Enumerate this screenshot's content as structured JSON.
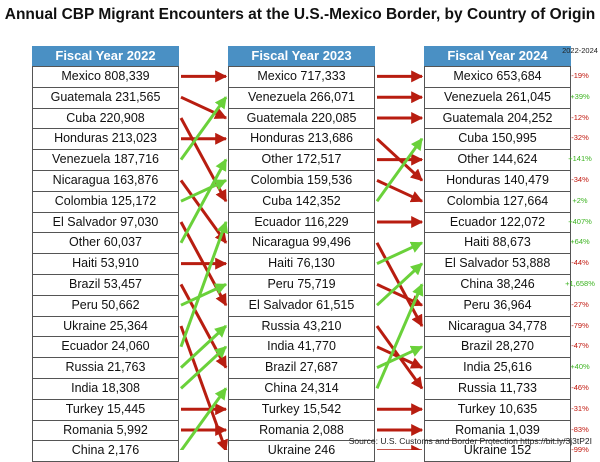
{
  "chart_data": {
    "type": "table",
    "title": "Annual CBP Migrant Encounters at the U.S.-Mexico Border, by Country of Origin",
    "change_header": "2022-2024",
    "source": "Source: U.S. Customs and Border Protection https://bit.ly/3j3tP2I",
    "columns": [
      {
        "header": "Fiscal Year 2022",
        "rows": [
          {
            "country": "Mexico",
            "value": 808339,
            "label": "Mexico 808,339"
          },
          {
            "country": "Guatemala",
            "value": 231565,
            "label": "Guatemala 231,565"
          },
          {
            "country": "Cuba",
            "value": 220908,
            "label": "Cuba 220,908"
          },
          {
            "country": "Honduras",
            "value": 213023,
            "label": "Honduras 213,023"
          },
          {
            "country": "Venezuela",
            "value": 187716,
            "label": "Venezuela 187,716"
          },
          {
            "country": "Nicaragua",
            "value": 163876,
            "label": "Nicaragua 163,876"
          },
          {
            "country": "Colombia",
            "value": 125172,
            "label": "Colombia 125,172"
          },
          {
            "country": "El Salvador",
            "value": 97030,
            "label": "El Salvador 97,030"
          },
          {
            "country": "Other",
            "value": 60037,
            "label": "Other 60,037"
          },
          {
            "country": "Haiti",
            "value": 53910,
            "label": "Haiti 53,910"
          },
          {
            "country": "Brazil",
            "value": 53457,
            "label": "Brazil 53,457"
          },
          {
            "country": "Peru",
            "value": 50662,
            "label": "Peru 50,662"
          },
          {
            "country": "Ukraine",
            "value": 25364,
            "label": "Ukraine 25,364"
          },
          {
            "country": "Ecuador",
            "value": 24060,
            "label": "Ecuador 24,060"
          },
          {
            "country": "Russia",
            "value": 21763,
            "label": "Russia 21,763"
          },
          {
            "country": "India",
            "value": 18308,
            "label": "India 18,308"
          },
          {
            "country": "Turkey",
            "value": 15445,
            "label": "Turkey 15,445"
          },
          {
            "country": "Romania",
            "value": 5992,
            "label": "Romania 5,992"
          },
          {
            "country": "China",
            "value": 2176,
            "label": "China 2,176"
          }
        ]
      },
      {
        "header": "Fiscal Year 2023",
        "rows": [
          {
            "country": "Mexico",
            "value": 717333,
            "label": "Mexico 717,333"
          },
          {
            "country": "Venezuela",
            "value": 266071,
            "label": "Venezuela 266,071"
          },
          {
            "country": "Guatemala",
            "value": 220085,
            "label": "Guatemala 220,085"
          },
          {
            "country": "Honduras",
            "value": 213686,
            "label": "Honduras 213,686"
          },
          {
            "country": "Other",
            "value": 172517,
            "label": "Other 172,517"
          },
          {
            "country": "Colombia",
            "value": 159536,
            "label": "Colombia 159,536"
          },
          {
            "country": "Cuba",
            "value": 142352,
            "label": "Cuba 142,352"
          },
          {
            "country": "Ecuador",
            "value": 116229,
            "label": "Ecuador 116,229"
          },
          {
            "country": "Nicaragua",
            "value": 99496,
            "label": "Nicaragua 99,496"
          },
          {
            "country": "Haiti",
            "value": 76130,
            "label": "Haiti 76,130"
          },
          {
            "country": "Peru",
            "value": 75719,
            "label": "Peru 75,719"
          },
          {
            "country": "El Salvador",
            "value": 61515,
            "label": "El Salvador 61,515"
          },
          {
            "country": "Russia",
            "value": 43210,
            "label": "Russia 43,210"
          },
          {
            "country": "India",
            "value": 41770,
            "label": "India 41,770"
          },
          {
            "country": "Brazil",
            "value": 27687,
            "label": "Brazil 27,687"
          },
          {
            "country": "China",
            "value": 24314,
            "label": "China 24,314"
          },
          {
            "country": "Turkey",
            "value": 15542,
            "label": "Turkey 15,542"
          },
          {
            "country": "Romania",
            "value": 2088,
            "label": "Romania 2,088"
          },
          {
            "country": "Ukraine",
            "value": 246,
            "label": "Ukraine 246"
          }
        ]
      },
      {
        "header": "Fiscal Year 2024",
        "rows": [
          {
            "country": "Mexico",
            "value": 653684,
            "label": "Mexico 653,684",
            "change": "-19%"
          },
          {
            "country": "Venezuela",
            "value": 261045,
            "label": "Venezuela 261,045",
            "change": "+39%"
          },
          {
            "country": "Guatemala",
            "value": 204252,
            "label": "Guatemala 204,252",
            "change": "-12%"
          },
          {
            "country": "Cuba",
            "value": 150995,
            "label": "Cuba 150,995",
            "change": "-32%"
          },
          {
            "country": "Other",
            "value": 144624,
            "label": "Other 144,624",
            "change": "+141%"
          },
          {
            "country": "Honduras",
            "value": 140479,
            "label": "Honduras 140,479",
            "change": "-34%"
          },
          {
            "country": "Colombia",
            "value": 127664,
            "label": "Colombia 127,664",
            "change": "+2%"
          },
          {
            "country": "Ecuador",
            "value": 122072,
            "label": "Ecuador 122,072",
            "change": "+407%"
          },
          {
            "country": "Haiti",
            "value": 88673,
            "label": "Haiti 88,673",
            "change": "+64%"
          },
          {
            "country": "El Salvador",
            "value": 53888,
            "label": "El Salvador 53,888",
            "change": "-44%"
          },
          {
            "country": "China",
            "value": 38246,
            "label": "China 38,246",
            "change": "+1,658%"
          },
          {
            "country": "Peru",
            "value": 36964,
            "label": "Peru 36,964",
            "change": "-27%"
          },
          {
            "country": "Nicaragua",
            "value": 34778,
            "label": "Nicaragua 34,778",
            "change": "-79%"
          },
          {
            "country": "Brazil",
            "value": 28270,
            "label": "Brazil 28,270",
            "change": "-47%"
          },
          {
            "country": "India",
            "value": 25616,
            "label": "India 25,616",
            "change": "+40%"
          },
          {
            "country": "Russia",
            "value": 11733,
            "label": "Russia 11,733",
            "change": "-46%"
          },
          {
            "country": "Turkey",
            "value": 10635,
            "label": "Turkey 10,635",
            "change": "-31%"
          },
          {
            "country": "Romania",
            "value": 1039,
            "label": "Romania 1,039",
            "change": "-83%"
          },
          {
            "country": "Ukraine",
            "value": 152,
            "label": "Ukraine 152",
            "change": "-99%"
          }
        ]
      }
    ],
    "colors": {
      "header_bg": "#4a90c4",
      "rank_up": "#6ad13a",
      "rank_down": "#b81d10",
      "change_up": "#3cb320",
      "change_down": "#c0160c"
    }
  }
}
